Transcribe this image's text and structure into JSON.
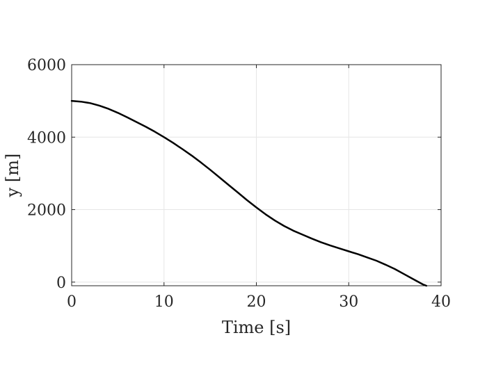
{
  "chart_data": {
    "type": "line",
    "xlabel": "Time [s]",
    "ylabel": "y [m]",
    "xlim": [
      0,
      40
    ],
    "ylim": [
      -100,
      6000
    ],
    "xticks": [
      0,
      10,
      20,
      30,
      40
    ],
    "yticks": [
      0,
      2000,
      4000,
      6000
    ],
    "grid": true,
    "colors": {
      "series": "#000000",
      "grid": "#e6e6e6",
      "axis": "#262626"
    },
    "series": [
      {
        "x": [
          0,
          1,
          2,
          3,
          4,
          5,
          6,
          7,
          8,
          9,
          10,
          11,
          12,
          13,
          14,
          15,
          16,
          17,
          18,
          19,
          20,
          21,
          22,
          23,
          24,
          25,
          26,
          27,
          28,
          29,
          30,
          31,
          32,
          33,
          34,
          35,
          36,
          37,
          38,
          38.4
        ],
        "y": [
          5000,
          4980,
          4940,
          4870,
          4780,
          4670,
          4550,
          4420,
          4290,
          4150,
          4000,
          3840,
          3670,
          3490,
          3300,
          3100,
          2890,
          2680,
          2470,
          2260,
          2060,
          1870,
          1700,
          1550,
          1420,
          1310,
          1200,
          1100,
          1010,
          930,
          850,
          770,
          680,
          590,
          480,
          360,
          220,
          80,
          -60,
          -100
        ]
      }
    ]
  }
}
